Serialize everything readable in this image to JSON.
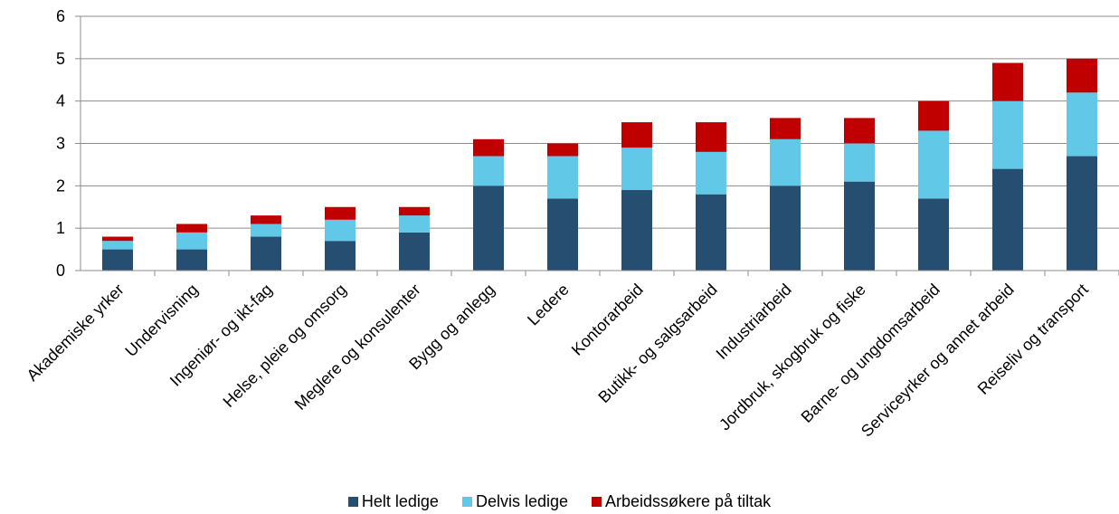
{
  "chart_data": {
    "type": "bar",
    "stacked": true,
    "categories": [
      "Akademiske yrker",
      "Undervisning",
      "Ingeniør- og ikt-fag",
      "Helse, pleie og omsorg",
      "Meglere og konsulenter",
      "Bygg og anlegg",
      "Ledere",
      "Kontorarbeid",
      "Butikk- og salgsarbeid",
      "Industriarbeid",
      "Jordbruk, skogbruk og fiske",
      "Barne- og ungdomsarbeid",
      "Serviceyrker og annet arbeid",
      "Reiseliv og transport"
    ],
    "series": [
      {
        "name": "Helt ledige",
        "color": "#264e70",
        "values": [
          0.5,
          0.5,
          0.8,
          0.7,
          0.9,
          2.0,
          1.7,
          1.9,
          1.8,
          2.0,
          2.1,
          1.7,
          2.4,
          2.7
        ]
      },
      {
        "name": "Delvis ledige",
        "color": "#62c8e8",
        "values": [
          0.2,
          0.4,
          0.3,
          0.5,
          0.4,
          0.7,
          1.0,
          1.0,
          1.0,
          1.1,
          0.9,
          1.6,
          1.6,
          1.5
        ]
      },
      {
        "name": "Arbeidssøkere på tiltak",
        "color": "#c00000",
        "values": [
          0.1,
          0.2,
          0.2,
          0.3,
          0.2,
          0.4,
          0.3,
          0.6,
          0.7,
          0.5,
          0.6,
          0.7,
          0.9,
          0.8
        ]
      }
    ],
    "yticks": [
      "0",
      "1",
      "2",
      "3",
      "4",
      "5",
      "6"
    ],
    "ylim": [
      0,
      6
    ],
    "grid": true,
    "legend_position": "bottom"
  }
}
